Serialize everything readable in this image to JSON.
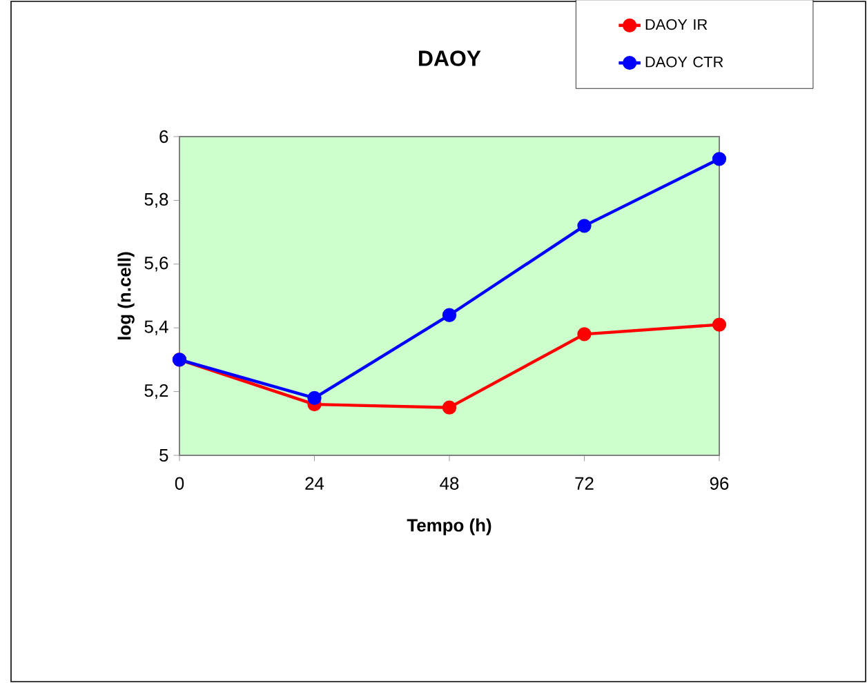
{
  "chart_data": {
    "type": "line",
    "title": "DAOY",
    "xlabel": "Tempo (h)",
    "ylabel": "log (n.cell)",
    "x": [
      0,
      24,
      48,
      72,
      96
    ],
    "series": [
      {
        "name": "DAOY IR",
        "color": "#ff0000",
        "values": [
          5.3,
          5.16,
          5.15,
          5.38,
          5.41
        ]
      },
      {
        "name": "DAOY CTR",
        "color": "#0000ff",
        "values": [
          5.3,
          5.18,
          5.44,
          5.72,
          5.93
        ]
      }
    ],
    "xlim": [
      0,
      96
    ],
    "xticks": [
      0,
      24,
      48,
      72,
      96
    ],
    "ylim": [
      5,
      6
    ],
    "yticks": [
      5,
      {
        "value": 5.2,
        "label": "5,2"
      },
      {
        "value": 5.4,
        "label": "5,4"
      },
      {
        "value": 5.6,
        "label": "5,6"
      },
      {
        "value": 5.8,
        "label": "5,8"
      },
      6
    ],
    "grid": false,
    "legend": "top right",
    "marker": "circle",
    "line_style": "solid"
  }
}
